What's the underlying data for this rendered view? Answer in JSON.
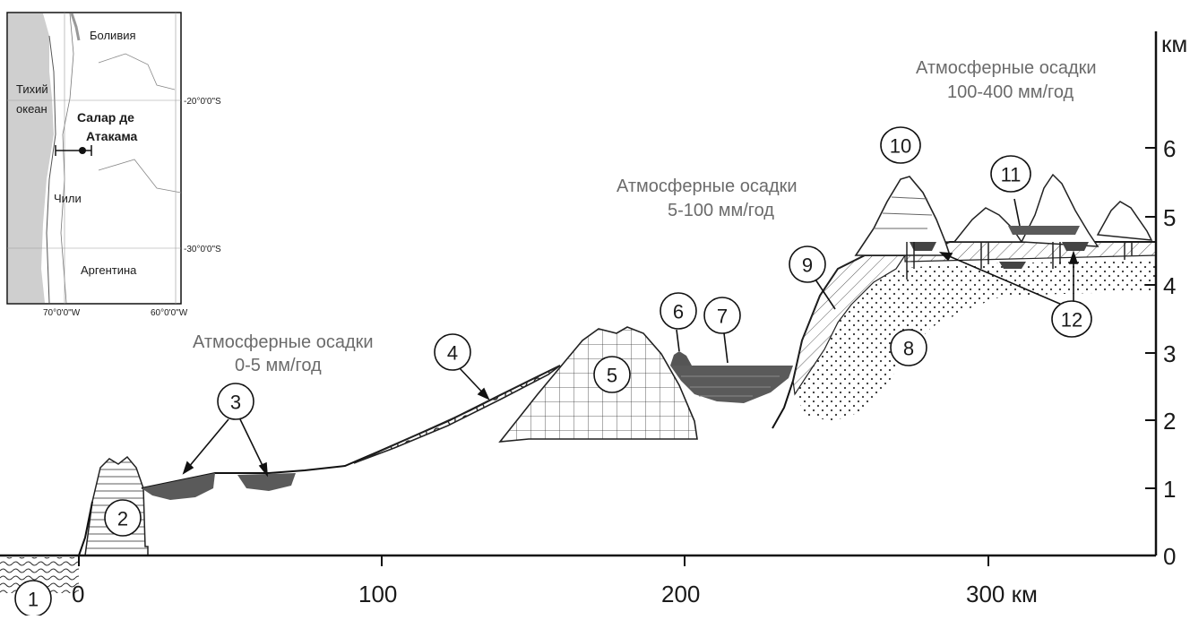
{
  "axis": {
    "y_unit": "км",
    "y_ticks": [
      "0",
      "1",
      "2",
      "3",
      "4",
      "5",
      "6"
    ],
    "x_ticks": [
      "0",
      "100",
      "200",
      "300 км"
    ]
  },
  "precip": [
    {
      "line1": "Атмосферные осадки",
      "line2": "0-5 мм/год"
    },
    {
      "line1": "Атмосферные осадки",
      "line2": "5-100 мм/год"
    },
    {
      "line1": "Атмосферные осадки",
      "line2": "100-400 мм/год"
    }
  ],
  "labels": [
    "1",
    "2",
    "3",
    "4",
    "5",
    "6",
    "7",
    "8",
    "9",
    "10",
    "11",
    "12"
  ],
  "map": {
    "bolivia": "Боливия",
    "ocean1": "Тихий",
    "ocean2": "океан",
    "salar1": "Салар де",
    "salar2": "Атакама",
    "chile": "Чили",
    "argentina": "Аргентина",
    "lat20": "-20°0'0\"S",
    "lat30": "-30°0'0\"S",
    "lon70": "70°0'0\"W",
    "lon60": "60°0'0\"W"
  },
  "colors": {
    "water": "#555555",
    "ink": "#1a1a1a",
    "precip": "#6b6b6b",
    "map_sea": "#cfcfcf"
  }
}
